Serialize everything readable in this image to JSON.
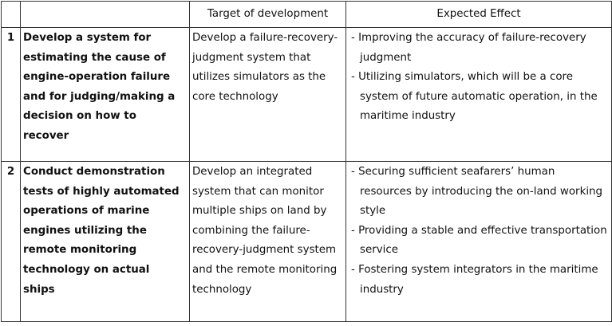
{
  "table": {
    "header": [
      "Target of development",
      "Expected Effect"
    ],
    "rows": [
      {
        "number": "1",
        "title": "Develop a system for estimating the cause of engine-operation failure and for judging/making a decision on how to recover",
        "target": "Develop a failure-recovery-judgment system that utilizes simulators as the core technology",
        "effects": [
          "- Improving the accuracy of failure-recovery judgment",
          "- Utilizing simulators, which will be a core system of future automatic operation, in the maritime industry"
        ]
      },
      {
        "number": "2",
        "title": "Conduct demonstration tests of highly automated operations of marine engines utilizing the remote monitoring technology on actual ships",
        "target": "Develop an integrated system that can monitor multiple ships on land by combining the failure-recovery-judgment system and the remote monitoring technology",
        "effects": [
          "- Securing sufficient seafarers’ human resources by introducing the on-land working style",
          "- Providing a stable and effective transportation service",
          "- Fostering system integrators in the maritime industry"
        ]
      }
    ]
  }
}
